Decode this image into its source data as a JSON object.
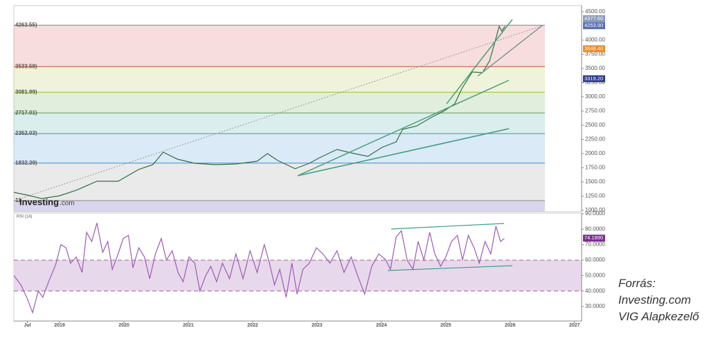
{
  "chart_data": [
    {
      "type": "line",
      "xlim": [
        2018.29,
        2027.11
      ],
      "ylim": [
        975,
        4610
      ],
      "yticks": [
        {
          "value": 4500,
          "label": "4500.00"
        },
        {
          "value": 4000,
          "label": "4000.00"
        },
        {
          "value": 3750,
          "label": "3750.00"
        },
        {
          "value": 3500,
          "label": "3500.00"
        },
        {
          "value": 3250,
          "label": "3250.00"
        },
        {
          "value": 3000,
          "label": "3000.00"
        },
        {
          "value": 2750,
          "label": "2750.00"
        },
        {
          "value": 2500,
          "label": "2500.00"
        },
        {
          "value": 2250,
          "label": "2250.00"
        },
        {
          "value": 2000,
          "label": "2000.00"
        },
        {
          "value": 1750,
          "label": "1750.00"
        },
        {
          "value": 1500,
          "label": "1500.00"
        },
        {
          "value": 1250,
          "label": "1250.00"
        },
        {
          "value": 1000,
          "label": "1000.00"
        }
      ],
      "x": [
        2018.29,
        2018.5,
        2018.72,
        2019.0,
        2019.26,
        2019.58,
        2019.91,
        2020.23,
        2020.45,
        2020.61,
        2020.83,
        2021.1,
        2021.42,
        2021.74,
        2022.07,
        2022.23,
        2022.39,
        2022.66,
        2022.88,
        2023.04,
        2023.31,
        2023.58,
        2023.79,
        2024.01,
        2024.23,
        2024.33,
        2024.55,
        2024.77,
        2024.98,
        2025.14,
        2025.25,
        2025.41,
        2025.57,
        2025.68,
        2025.76,
        2025.83,
        2025.87,
        2025.92
      ],
      "values": [
        1317,
        1268,
        1207,
        1256,
        1354,
        1512,
        1512,
        1720,
        1805,
        2024,
        1902,
        1829,
        1805,
        1817,
        1866,
        2000,
        1878,
        1732,
        1829,
        1927,
        2073,
        2000,
        1951,
        2110,
        2207,
        2427,
        2488,
        2634,
        2756,
        2878,
        3146,
        3439,
        3427,
        3634,
        3951,
        4244,
        4159,
        4244
      ],
      "color": "#2f6f3f",
      "fib_levels": [
        {
          "value": 4263.55,
          "label": "4263.55)",
          "color": "#8a8a8a"
        },
        {
          "value": 3533.58,
          "label": "3533.58)",
          "color": "#d04040"
        },
        {
          "value": 3081.99,
          "label": "3081.99)",
          "color": "#a4bf2c"
        },
        {
          "value": 2717.01,
          "label": "2717.01)",
          "color": "#5aa04a"
        },
        {
          "value": 2352.03,
          "label": "2352.03)",
          "color": "#3aa0a0"
        },
        {
          "value": 1832.39,
          "label": "1832.39)",
          "color": "#3a8ad0"
        },
        {
          "value": 1171,
          "label": "11",
          "color": "#8a8a8a"
        }
      ],
      "price_labels": [
        {
          "value": 4377.6,
          "label": "4377.60",
          "color": "#8a9bb8"
        },
        {
          "value": 4253.9,
          "label": "4253.90",
          "color": "#5a6fb0"
        },
        {
          "value": 3848.4,
          "label": "3848.40",
          "color": "#f08a24"
        },
        {
          "value": 3319.2,
          "label": "3319.20",
          "color": "#2e3d8a"
        }
      ],
      "watermark": [
        "Investing",
        ".com"
      ]
    },
    {
      "type": "line",
      "title": "RSI (14)",
      "xlim": [
        2018.29,
        2027.11
      ],
      "ylim": [
        20.6,
        90.4
      ],
      "xticks": [
        {
          "value": 2018.5,
          "label": "Jul"
        },
        2019,
        2020,
        2021,
        2022,
        2023,
        2024,
        2025,
        2026,
        2027
      ],
      "yticks": [
        {
          "value": 90,
          "label": "90.0000"
        },
        {
          "value": 80,
          "label": "80.0000"
        },
        {
          "value": 70,
          "label": "70.0000"
        },
        {
          "value": 60,
          "label": "60.0000"
        },
        {
          "value": 50,
          "label": "50.0000"
        },
        {
          "value": 40,
          "label": "40.0000"
        },
        {
          "value": 30,
          "label": "30.0000"
        }
      ],
      "levels": [
        60,
        40
      ],
      "x": [
        2018.29,
        2018.4,
        2018.5,
        2018.58,
        2018.67,
        2018.74,
        2018.83,
        2018.94,
        2019.02,
        2019.1,
        2019.17,
        2019.26,
        2019.35,
        2019.42,
        2019.5,
        2019.58,
        2019.67,
        2019.75,
        2019.82,
        2019.91,
        2019.99,
        2020.07,
        2020.14,
        2020.23,
        2020.32,
        2020.4,
        2020.49,
        2020.58,
        2020.66,
        2020.75,
        2020.84,
        2020.92,
        2021.01,
        2021.1,
        2021.18,
        2021.27,
        2021.35,
        2021.44,
        2021.53,
        2021.64,
        2021.74,
        2021.85,
        2021.96,
        2022.07,
        2022.18,
        2022.26,
        2022.34,
        2022.42,
        2022.52,
        2022.61,
        2022.69,
        2022.78,
        2022.88,
        2022.99,
        2023.09,
        2023.2,
        2023.31,
        2023.42,
        2023.53,
        2023.63,
        2023.74,
        2023.85,
        2023.96,
        2024.07,
        2024.14,
        2024.23,
        2024.31,
        2024.4,
        2024.49,
        2024.57,
        2024.66,
        2024.75,
        2024.83,
        2024.92,
        2025.0,
        2025.09,
        2025.18,
        2025.26,
        2025.35,
        2025.44,
        2025.52,
        2025.61,
        2025.7,
        2025.78,
        2025.85,
        2025.91
      ],
      "values": [
        50,
        44,
        35,
        26,
        40,
        36,
        46,
        57,
        70,
        68,
        58,
        62,
        52,
        78,
        72,
        84,
        65,
        72,
        54,
        64,
        74,
        76,
        55,
        68,
        62,
        48,
        64,
        74,
        60,
        66,
        52,
        46,
        62,
        58,
        40,
        50,
        56,
        46,
        58,
        48,
        64,
        48,
        66,
        52,
        70,
        58,
        44,
        54,
        36,
        58,
        38,
        54,
        58,
        68,
        64,
        58,
        66,
        52,
        62,
        50,
        38,
        56,
        64,
        60,
        54,
        75,
        79,
        60,
        54,
        72,
        60,
        78,
        64,
        56,
        62,
        72,
        76,
        60,
        76,
        68,
        58,
        72,
        64,
        82,
        72,
        74
      ],
      "color": "#9c5bb3",
      "value_label": {
        "value": 74.189,
        "label": "74.1890",
        "color": "#7b2f8f"
      }
    }
  ],
  "source": [
    "Forrás:",
    "Investing.com",
    "VIG Alapkezelő"
  ]
}
